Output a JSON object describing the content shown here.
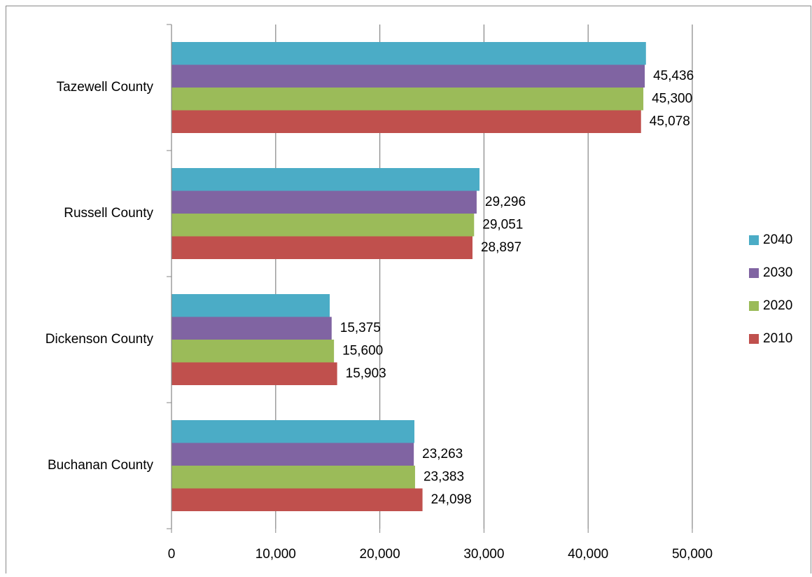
{
  "chart_data": {
    "type": "bar",
    "orientation": "horizontal",
    "categories": [
      "Buchanan County",
      "Dickenson County",
      "Russell County",
      "Tazewell County"
    ],
    "series": [
      {
        "name": "2040",
        "color": "#4bacc6",
        "values": [
          23320,
          15190,
          29570,
          45550
        ]
      },
      {
        "name": "2030",
        "color": "#8064a2",
        "values": [
          23263,
          15375,
          29296,
          45436
        ],
        "value_labels": [
          "23,263",
          "15,375",
          "29,296",
          "45,436"
        ]
      },
      {
        "name": "2020",
        "color": "#9bbb59",
        "values": [
          23383,
          15600,
          29051,
          45300
        ],
        "value_labels": [
          "23,383",
          "15,600",
          "29,051",
          "45,300"
        ]
      },
      {
        "name": "2010",
        "color": "#c0504d",
        "values": [
          24098,
          15903,
          28897,
          45078
        ],
        "value_labels": [
          "24,098",
          "15,903",
          "28,897",
          "45,078"
        ]
      }
    ],
    "xlim": [
      0,
      50000
    ],
    "xticks": [
      0,
      {
        "value": 10000,
        "label": "10,000"
      },
      {
        "value": 20000,
        "label": "20,000"
      },
      {
        "value": 30000,
        "label": "30,000"
      },
      {
        "value": 40000,
        "label": "40,000"
      },
      {
        "value": 50000,
        "label": "50,000"
      }
    ],
    "grid": true,
    "legend": "right"
  }
}
